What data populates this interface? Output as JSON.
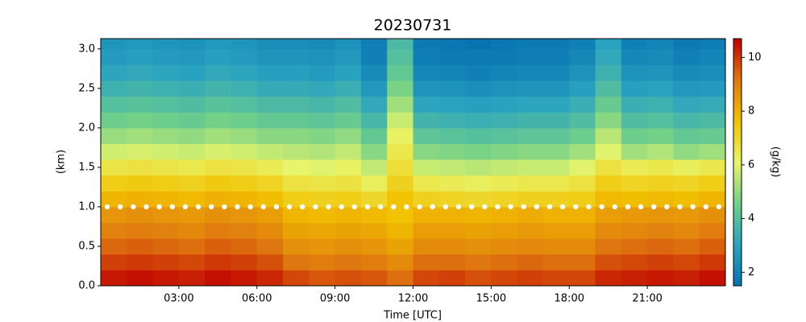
{
  "chart_data": {
    "type": "heatmap",
    "title": "20230731",
    "xlabel": "Time [UTC]",
    "ylabel": "(km)",
    "colorbar_label": "(g/kg)",
    "xlim": [
      0,
      24
    ],
    "ylim": [
      0,
      3.13
    ],
    "zlim": [
      1.5,
      10.7
    ],
    "xticks": [
      {
        "value": 3,
        "label": "03:00"
      },
      {
        "value": 6,
        "label": "06:00"
      },
      {
        "value": 9,
        "label": "09:00"
      },
      {
        "value": 12,
        "label": "12:00"
      },
      {
        "value": 15,
        "label": "15:00"
      },
      {
        "value": 18,
        "label": "18:00"
      },
      {
        "value": 21,
        "label": "21:00"
      }
    ],
    "yticks": [
      {
        "value": 0,
        "label": "0.0"
      },
      {
        "value": 0.5,
        "label": "0.5"
      },
      {
        "value": 1,
        "label": "1.0"
      },
      {
        "value": 1.5,
        "label": "1.5"
      },
      {
        "value": 2,
        "label": "2.0"
      },
      {
        "value": 2.5,
        "label": "2.5"
      },
      {
        "value": 3,
        "label": "3.0"
      }
    ],
    "zticks": [
      2,
      4,
      6,
      8,
      10
    ],
    "colormap": [
      "#0571b0",
      "#2aa3c0",
      "#6fcf8a",
      "#e8f56a",
      "#f2c200",
      "#e07a10",
      "#c00000"
    ],
    "x": [
      0.5,
      1.5,
      2.5,
      3.5,
      4.5,
      5.5,
      6.5,
      7.5,
      8.5,
      9.5,
      10.5,
      11.5,
      12.5,
      13.5,
      14.5,
      15.5,
      16.5,
      17.5,
      18.5,
      19.5,
      20.5,
      21.5,
      22.5,
      23.5
    ],
    "y": [
      0.1,
      0.3,
      0.5,
      0.7,
      0.9,
      1.1,
      1.3,
      1.5,
      1.7,
      1.9,
      2.1,
      2.3,
      2.5,
      2.7,
      2.9,
      3.1
    ],
    "z": [
      [
        10.4,
        10.5,
        10.4,
        10.3,
        10.5,
        10.4,
        10.2,
        9.8,
        9.6,
        9.7,
        9.6,
        9.3,
        9.8,
        9.9,
        9.7,
        9.8,
        9.9,
        9.8,
        9.8,
        10.2,
        10.3,
        10.4,
        10.3,
        10.5
      ],
      [
        9.9,
        10.0,
        9.9,
        9.8,
        10.0,
        9.9,
        9.7,
        9.2,
        9.1,
        9.2,
        9.1,
        8.8,
        9.3,
        9.3,
        9.2,
        9.3,
        9.4,
        9.3,
        9.3,
        9.7,
        9.8,
        9.9,
        9.8,
        10.0
      ],
      [
        9.4,
        9.5,
        9.4,
        9.3,
        9.5,
        9.4,
        9.2,
        8.7,
        8.6,
        8.7,
        8.6,
        8.3,
        8.8,
        8.8,
        8.7,
        8.8,
        8.9,
        8.8,
        8.8,
        9.2,
        9.3,
        9.4,
        9.3,
        9.5
      ],
      [
        9.0,
        9.1,
        9.0,
        8.9,
        9.1,
        9.0,
        8.8,
        8.3,
        8.2,
        8.3,
        8.2,
        7.9,
        8.4,
        8.4,
        8.3,
        8.4,
        8.5,
        8.4,
        8.4,
        8.8,
        8.9,
        9.0,
        8.9,
        9.1
      ],
      [
        8.6,
        8.7,
        8.6,
        8.5,
        8.7,
        8.6,
        8.4,
        7.9,
        7.8,
        7.9,
        7.8,
        7.6,
        8.0,
        8.0,
        7.9,
        8.0,
        8.1,
        8.0,
        8.0,
        8.4,
        8.5,
        8.6,
        8.5,
        8.7
      ],
      [
        7.9,
        8.0,
        7.9,
        7.8,
        8.0,
        7.9,
        7.7,
        7.3,
        7.2,
        7.3,
        7.0,
        7.6,
        7.2,
        7.1,
        7.0,
        7.1,
        7.2,
        7.2,
        7.3,
        7.8,
        7.7,
        7.8,
        7.7,
        7.9
      ],
      [
        7.3,
        7.4,
        7.3,
        7.2,
        7.4,
        7.3,
        7.1,
        6.7,
        6.6,
        6.7,
        6.3,
        7.2,
        6.5,
        6.4,
        6.3,
        6.4,
        6.5,
        6.5,
        6.7,
        7.3,
        7.1,
        7.2,
        7.1,
        7.3
      ],
      [
        6.6,
        6.7,
        6.6,
        6.5,
        6.7,
        6.6,
        6.4,
        6.1,
        6.0,
        6.2,
        5.6,
        6.8,
        5.7,
        5.6,
        5.5,
        5.6,
        5.7,
        5.7,
        6.0,
        6.7,
        6.4,
        6.5,
        6.3,
        6.5
      ],
      [
        5.8,
        5.9,
        5.8,
        5.7,
        5.9,
        5.8,
        5.6,
        5.5,
        5.4,
        5.6,
        4.9,
        6.5,
        4.9,
        4.8,
        4.7,
        4.8,
        4.9,
        4.9,
        5.2,
        6.0,
        5.2,
        5.4,
        5.0,
        5.2
      ],
      [
        5.1,
        5.2,
        5.1,
        5.0,
        5.2,
        5.1,
        4.9,
        4.9,
        4.8,
        5.0,
        4.3,
        6.2,
        4.2,
        4.1,
        4.0,
        4.1,
        4.2,
        4.2,
        4.5,
        5.5,
        4.5,
        4.6,
        4.3,
        4.4
      ],
      [
        4.5,
        4.6,
        4.5,
        4.4,
        4.6,
        4.5,
        4.3,
        4.3,
        4.2,
        4.4,
        3.7,
        5.7,
        3.6,
        3.5,
        3.4,
        3.5,
        3.6,
        3.6,
        3.9,
        4.9,
        3.9,
        4.0,
        3.7,
        3.8
      ],
      [
        4.0,
        4.1,
        4.0,
        3.9,
        4.1,
        4.0,
        3.8,
        3.8,
        3.7,
        3.9,
        3.2,
        5.2,
        3.1,
        3.0,
        2.9,
        3.0,
        3.1,
        3.1,
        3.4,
        4.4,
        3.4,
        3.5,
        3.2,
        3.3
      ],
      [
        3.5,
        3.6,
        3.5,
        3.4,
        3.6,
        3.5,
        3.3,
        3.3,
        3.2,
        3.4,
        2.7,
        4.7,
        2.6,
        2.5,
        2.4,
        2.5,
        2.6,
        2.6,
        2.9,
        3.9,
        2.9,
        3.0,
        2.7,
        2.8
      ],
      [
        3.1,
        3.2,
        3.1,
        3.0,
        3.2,
        3.1,
        2.9,
        2.9,
        2.8,
        3.0,
        2.3,
        4.3,
        2.2,
        2.1,
        2.0,
        2.1,
        2.2,
        2.2,
        2.5,
        3.5,
        2.5,
        2.6,
        2.3,
        2.4
      ],
      [
        2.8,
        2.9,
        2.8,
        2.7,
        2.9,
        2.8,
        2.6,
        2.6,
        2.5,
        2.7,
        2.0,
        4.0,
        1.9,
        1.8,
        1.8,
        1.8,
        1.9,
        1.9,
        2.2,
        3.2,
        2.2,
        2.3,
        2.0,
        2.1
      ],
      [
        2.6,
        2.7,
        2.6,
        2.5,
        2.7,
        2.6,
        2.4,
        2.4,
        2.3,
        2.5,
        1.9,
        3.8,
        1.8,
        1.7,
        1.6,
        1.7,
        1.8,
        1.8,
        2.0,
        3.0,
        2.0,
        2.1,
        1.8,
        1.9
      ]
    ],
    "overlay": {
      "color": "#ffffff",
      "x": [
        0.25,
        0.75,
        1.25,
        1.75,
        2.25,
        2.75,
        3.25,
        3.75,
        4.25,
        4.75,
        5.25,
        5.75,
        6.25,
        6.75,
        7.25,
        7.75,
        8.25,
        8.75,
        9.25,
        9.75,
        10.25,
        10.75,
        11.25,
        11.75,
        12.25,
        12.75,
        13.25,
        13.75,
        14.25,
        14.75,
        15.25,
        15.75,
        16.25,
        16.75,
        17.25,
        17.75,
        18.25,
        18.75,
        19.25,
        19.75,
        20.25,
        20.75,
        21.25,
        21.75,
        22.25,
        22.75,
        23.25,
        23.75
      ],
      "y": [
        1,
        1,
        1,
        1,
        1,
        1,
        1,
        1,
        1,
        1,
        1,
        1,
        1,
        1,
        1,
        1,
        1,
        1,
        1,
        1,
        1,
        1,
        1,
        1,
        1,
        1,
        1,
        1,
        1,
        1,
        1,
        1,
        1,
        1,
        1,
        1,
        1,
        1,
        1,
        1,
        1,
        1,
        1,
        1,
        1,
        1,
        1,
        1
      ]
    }
  }
}
